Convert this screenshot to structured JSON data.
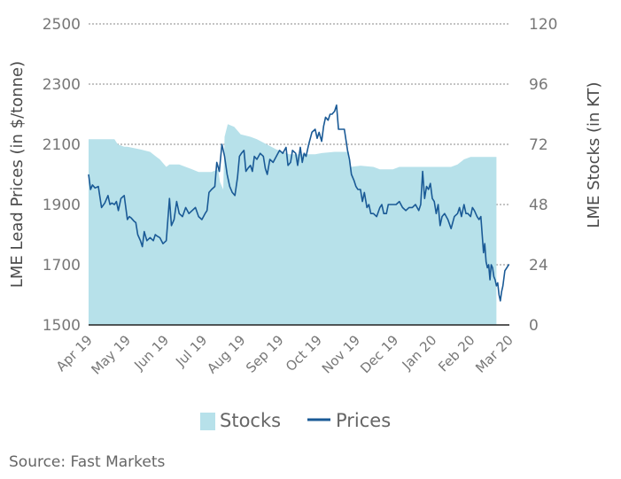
{
  "chart_data": {
    "type": "area+line",
    "y_left": {
      "label": "LME Lead Prices (in $/tonne)",
      "lim": [
        1500,
        2500
      ],
      "ticks": [
        "2500",
        "2300",
        "2100",
        "1900",
        "1700",
        "1500"
      ]
    },
    "y_right": {
      "label": "LME Stocks (in KT)",
      "lim": [
        0,
        120
      ],
      "ticks": [
        "120",
        "96",
        "72",
        "48",
        "24",
        "0"
      ]
    },
    "x_ticks": [
      "Apr 19",
      "May 19",
      "Jun 19",
      "Jul 19",
      "Aug 19",
      "Sep 19",
      "Oct 19",
      "Nov 19",
      "Dec 19",
      "Jan 20",
      "Feb 20",
      "Mar 20"
    ],
    "grid": "horizontal dashed",
    "legend": {
      "position": "bottom",
      "items": [
        "Stocks",
        "Prices"
      ]
    },
    "colors": {
      "stocks": "#b7e1ea",
      "prices": "#1a5a96",
      "grid": "#888888",
      "axis": "#222222"
    },
    "series": [
      {
        "name": "Stocks",
        "axis": "right",
        "points": [
          [
            0,
            74
          ],
          [
            4,
            74
          ],
          [
            4.5,
            72
          ],
          [
            5.5,
            71
          ],
          [
            6,
            71
          ],
          [
            8,
            70
          ],
          [
            9.5,
            69
          ],
          [
            10.5,
            67
          ],
          [
            11,
            66
          ],
          [
            12,
            63
          ],
          [
            12.5,
            64
          ],
          [
            14,
            64
          ],
          [
            15,
            63
          ],
          [
            16,
            62
          ],
          [
            17,
            61
          ],
          [
            19,
            61
          ],
          [
            20,
            62
          ],
          [
            20.3,
            57
          ],
          [
            20.8,
            54
          ],
          [
            21,
            75
          ],
          [
            21.5,
            80
          ],
          [
            22.5,
            79
          ],
          [
            23.5,
            76
          ],
          [
            25,
            75
          ],
          [
            26,
            74
          ],
          [
            27.5,
            72
          ],
          [
            29,
            70
          ],
          [
            30,
            69
          ],
          [
            31,
            68
          ],
          [
            32,
            68
          ],
          [
            33.5,
            68
          ],
          [
            35,
            68
          ],
          [
            36,
            68.5
          ],
          [
            38,
            69
          ],
          [
            40.2,
            69
          ],
          [
            40.5,
            63
          ],
          [
            42,
            63.5
          ],
          [
            44,
            63
          ],
          [
            45,
            62
          ],
          [
            47,
            62
          ],
          [
            48,
            63
          ],
          [
            50,
            63
          ],
          [
            52,
            63
          ],
          [
            56,
            63
          ],
          [
            57,
            64
          ],
          [
            58,
            66
          ],
          [
            59,
            67
          ],
          [
            61,
            67
          ],
          [
            63,
            67
          ]
        ]
      },
      {
        "name": "Prices",
        "axis": "left",
        "points": [
          [
            0,
            2000
          ],
          [
            0.3,
            1950
          ],
          [
            0.6,
            1965
          ],
          [
            1,
            1955
          ],
          [
            1.5,
            1960
          ],
          [
            2,
            1890
          ],
          [
            2.5,
            1905
          ],
          [
            3,
            1930
          ],
          [
            3.3,
            1900
          ],
          [
            3.6,
            1905
          ],
          [
            4,
            1900
          ],
          [
            4.3,
            1910
          ],
          [
            4.6,
            1880
          ],
          [
            5,
            1920
          ],
          [
            5.5,
            1930
          ],
          [
            6,
            1850
          ],
          [
            6.3,
            1860
          ],
          [
            6.6,
            1855
          ],
          [
            7,
            1845
          ],
          [
            7.3,
            1840
          ],
          [
            7.6,
            1800
          ],
          [
            8,
            1780
          ],
          [
            8.3,
            1760
          ],
          [
            8.6,
            1810
          ],
          [
            9,
            1780
          ],
          [
            9.5,
            1790
          ],
          [
            10,
            1780
          ],
          [
            10.3,
            1800
          ],
          [
            10.6,
            1795
          ],
          [
            11,
            1790
          ],
          [
            11.5,
            1770
          ],
          [
            12,
            1780
          ],
          [
            12.5,
            1920
          ],
          [
            12.8,
            1830
          ],
          [
            13.2,
            1850
          ],
          [
            13.6,
            1910
          ],
          [
            14,
            1870
          ],
          [
            14.5,
            1860
          ],
          [
            15,
            1890
          ],
          [
            15.5,
            1870
          ],
          [
            16,
            1880
          ],
          [
            16.5,
            1890
          ],
          [
            17,
            1860
          ],
          [
            17.5,
            1850
          ],
          [
            18,
            1870
          ],
          [
            18.3,
            1880
          ],
          [
            18.6,
            1940
          ],
          [
            19,
            1950
          ],
          [
            19.5,
            1960
          ],
          [
            19.8,
            2040
          ],
          [
            20.2,
            2010
          ],
          [
            20.6,
            2100
          ],
          [
            21,
            2060
          ],
          [
            21.4,
            2000
          ],
          [
            21.8,
            1960
          ],
          [
            22.2,
            1940
          ],
          [
            22.6,
            1930
          ],
          [
            23,
            1990
          ],
          [
            23.3,
            2060
          ],
          [
            23.6,
            2070
          ],
          [
            24,
            2080
          ],
          [
            24.3,
            2010
          ],
          [
            24.6,
            2020
          ],
          [
            25,
            2030
          ],
          [
            25.3,
            2010
          ],
          [
            25.6,
            2060
          ],
          [
            26,
            2050
          ],
          [
            26.5,
            2070
          ],
          [
            27,
            2060
          ],
          [
            27.3,
            2020
          ],
          [
            27.6,
            2000
          ],
          [
            28,
            2050
          ],
          [
            28.5,
            2040
          ],
          [
            29,
            2060
          ],
          [
            29.5,
            2080
          ],
          [
            30,
            2070
          ],
          [
            30.5,
            2090
          ],
          [
            30.8,
            2030
          ],
          [
            31.2,
            2040
          ],
          [
            31.5,
            2080
          ],
          [
            32,
            2070
          ],
          [
            32.3,
            2030
          ],
          [
            32.7,
            2090
          ],
          [
            33,
            2040
          ],
          [
            33.3,
            2070
          ],
          [
            33.6,
            2060
          ],
          [
            34,
            2100
          ],
          [
            34.5,
            2140
          ],
          [
            35,
            2150
          ],
          [
            35.3,
            2120
          ],
          [
            35.6,
            2140
          ],
          [
            36,
            2110
          ],
          [
            36.3,
            2160
          ],
          [
            36.6,
            2190
          ],
          [
            37,
            2180
          ],
          [
            37.3,
            2200
          ],
          [
            37.6,
            2200
          ],
          [
            38,
            2210
          ],
          [
            38.3,
            2230
          ],
          [
            38.6,
            2150
          ],
          [
            39,
            2150
          ],
          [
            39.5,
            2150
          ],
          [
            40,
            2080
          ],
          [
            40.3,
            2050
          ],
          [
            40.6,
            2000
          ],
          [
            41,
            1980
          ],
          [
            41.3,
            1960
          ],
          [
            41.6,
            1950
          ],
          [
            42,
            1950
          ],
          [
            42.3,
            1910
          ],
          [
            42.6,
            1940
          ],
          [
            43,
            1890
          ],
          [
            43.3,
            1900
          ],
          [
            43.6,
            1870
          ],
          [
            44,
            1870
          ],
          [
            44.5,
            1860
          ],
          [
            45,
            1890
          ],
          [
            45.3,
            1900
          ],
          [
            45.6,
            1870
          ],
          [
            46,
            1870
          ],
          [
            46.3,
            1900
          ],
          [
            46.6,
            1900
          ],
          [
            47,
            1900
          ],
          [
            47.5,
            1900
          ],
          [
            48,
            1910
          ],
          [
            48.5,
            1890
          ],
          [
            49,
            1880
          ],
          [
            49.5,
            1890
          ],
          [
            50,
            1890
          ],
          [
            50.5,
            1900
          ],
          [
            51,
            1880
          ],
          [
            51.3,
            1900
          ],
          [
            51.6,
            2010
          ],
          [
            51.9,
            1920
          ],
          [
            52.2,
            1960
          ],
          [
            52.5,
            1950
          ],
          [
            52.8,
            1970
          ],
          [
            53.1,
            1920
          ],
          [
            53.4,
            1910
          ],
          [
            53.7,
            1870
          ],
          [
            54,
            1900
          ],
          [
            54.3,
            1830
          ],
          [
            54.6,
            1860
          ],
          [
            55,
            1870
          ],
          [
            55.5,
            1850
          ],
          [
            56,
            1820
          ],
          [
            56.5,
            1860
          ],
          [
            57,
            1870
          ],
          [
            57.3,
            1890
          ],
          [
            57.6,
            1860
          ],
          [
            58,
            1900
          ],
          [
            58.3,
            1870
          ],
          [
            58.6,
            1870
          ],
          [
            59,
            1860
          ],
          [
            59.3,
            1890
          ],
          [
            59.6,
            1880
          ],
          [
            60,
            1860
          ],
          [
            60.3,
            1850
          ],
          [
            60.6,
            1860
          ],
          [
            61,
            1740
          ],
          [
            61.2,
            1770
          ],
          [
            61.4,
            1710
          ],
          [
            61.6,
            1690
          ],
          [
            61.8,
            1700
          ],
          [
            62,
            1650
          ],
          [
            62.2,
            1700
          ],
          [
            62.4,
            1690
          ],
          [
            62.6,
            1660
          ],
          [
            62.8,
            1650
          ],
          [
            63,
            1630
          ],
          [
            63.2,
            1640
          ],
          [
            63.4,
            1600
          ],
          [
            63.6,
            1580
          ],
          [
            63.8,
            1610
          ],
          [
            64,
            1630
          ],
          [
            64.3,
            1680
          ],
          [
            64.6,
            1690
          ],
          [
            64.9,
            1700
          ],
          [
            65,
            1700
          ]
        ]
      }
    ]
  },
  "source": "Source: Fast Markets"
}
